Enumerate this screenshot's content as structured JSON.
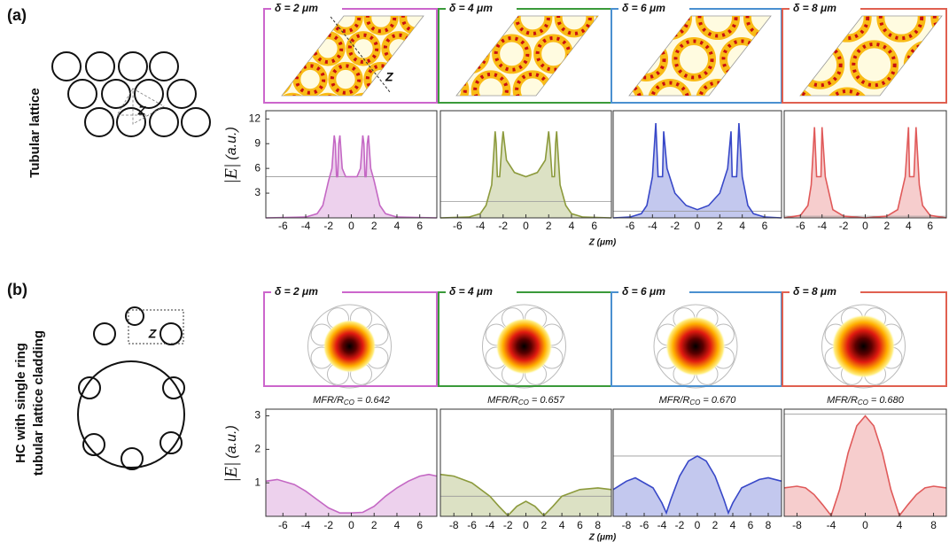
{
  "figure": {
    "panels": [
      {
        "label": "(a)",
        "side_label": [
          "Tubular lattice"
        ],
        "schematic_label": "Z",
        "ylabel_main": "|E|",
        "ylabel_unit": "(a.u.)",
        "xlabel": "Z (μm)",
        "ylim": [
          0,
          13
        ],
        "yticks": [
          3,
          6,
          9,
          12
        ],
        "plots": [
          {
            "title": "δ = 2 μm",
            "image_label": "Z",
            "frame_color": "#cc66cc",
            "color": "#c468c4",
            "xlim": [
              -7.5,
              7.5
            ],
            "xticks": [
              -6,
              -4,
              -2,
              0,
              2,
              4,
              6
            ],
            "x": [
              -7.5,
              -4,
              -3,
              -2.5,
              -2,
              -1.7,
              -1.5,
              -1.4,
              -1.3,
              -1.2,
              -1.1,
              -1.0,
              -0.8,
              -0.5,
              0,
              0.5,
              0.8,
              1.0,
              1.1,
              1.2,
              1.3,
              1.4,
              1.5,
              1.7,
              2,
              2.5,
              3,
              4,
              7.5
            ],
            "values": [
              0,
              0.1,
              0.5,
              1.5,
              4.5,
              6,
              10,
              9,
              5,
              5,
              9,
              10,
              6,
              5,
              5,
              5,
              6,
              10,
              9,
              5,
              5,
              9,
              10,
              6,
              4.5,
              1.5,
              0.5,
              0.1,
              0
            ],
            "level": 5
          },
          {
            "title": "δ = 4 μm",
            "frame_color": "#3a9a3a",
            "color": "#8c9a3c",
            "xlim": [
              -7.5,
              7.5
            ],
            "xticks": [
              -6,
              -4,
              -2,
              0,
              2,
              4,
              6
            ],
            "x": [
              -7.5,
              -5,
              -4,
              -3.5,
              -3,
              -2.7,
              -2.6,
              -2.5,
              -2.3,
              -2.1,
              -2,
              -1.7,
              -1,
              0,
              1,
              1.7,
              2,
              2.1,
              2.3,
              2.5,
              2.6,
              2.7,
              3,
              3.5,
              4,
              5,
              7.5
            ],
            "values": [
              0,
              0.1,
              0.5,
              1.5,
              4,
              10.5,
              9,
              5,
              5,
              9,
              10.5,
              7,
              5.5,
              5,
              5.5,
              7,
              10.5,
              9,
              5,
              5,
              9,
              10.5,
              4,
              1.5,
              0.5,
              0.1,
              0
            ],
            "level": 2
          },
          {
            "title": "δ = 6 μm",
            "frame_color": "#4a90d0",
            "color": "#3848c8",
            "xlim": [
              -7.5,
              7.5
            ],
            "xticks": [
              -6,
              -4,
              -2,
              0,
              2,
              4,
              6
            ],
            "x": [
              -7.5,
              -6,
              -5,
              -4.5,
              -4,
              -3.7,
              -3.5,
              -3.3,
              -3.1,
              -3,
              -2.7,
              -2,
              -1,
              0,
              1,
              2,
              2.7,
              3,
              3.1,
              3.3,
              3.5,
              3.7,
              4,
              4.5,
              5,
              6,
              7.5
            ],
            "values": [
              0,
              0.1,
              0.5,
              1.5,
              5,
              11.5,
              5,
              5,
              5,
              10.5,
              6,
              3,
              1.5,
              1,
              1.5,
              3,
              6,
              10.5,
              5,
              5,
              5,
              11.5,
              5,
              1.5,
              0.5,
              0.1,
              0
            ],
            "level": 0.8
          },
          {
            "title": "δ = 8 μm",
            "frame_color": "#e06050",
            "color": "#e05a5a",
            "xlim": [
              -7.5,
              7.5
            ],
            "xticks": [
              -6,
              -4,
              -2,
              0,
              2,
              4,
              6
            ],
            "x": [
              -7.5,
              -6,
              -5.3,
              -5,
              -4.7,
              -4.5,
              -4.3,
              -4.1,
              -4,
              -3.7,
              -3,
              -2,
              0,
              2,
              3,
              3.7,
              4,
              4.1,
              4.3,
              4.5,
              4.7,
              5,
              5.3,
              6,
              7.5
            ],
            "values": [
              0,
              0.3,
              1.5,
              4,
              11,
              5,
              5,
              5,
              11,
              5,
              1,
              0.2,
              0,
              0.2,
              1,
              5,
              11,
              5,
              5,
              5,
              11,
              4,
              1.5,
              0.3,
              0
            ],
            "level": 0.2
          }
        ]
      },
      {
        "label": "(b)",
        "side_label": [
          "HC with single ring",
          "tubular lattice cladding"
        ],
        "schematic_label": "Z",
        "ylabel_main": "|E|",
        "ylabel_unit": "(a.u.)",
        "xlabel": "Z (μm)",
        "ylim": [
          0,
          3.2
        ],
        "yticks": [
          1,
          2,
          3
        ],
        "plots": [
          {
            "title": "δ = 2 μm",
            "mfr": {
              "text": "MFR/R",
              "sub": "CO",
              "value": "= 0.642"
            },
            "frame_color": "#cc66cc",
            "color": "#c468c4",
            "xlim": [
              -7.5,
              7.5
            ],
            "xticks": [
              -6,
              -4,
              -2,
              0,
              2,
              4,
              6
            ],
            "x": [
              -7.5,
              -6.5,
              -5,
              -4,
              -3,
              -2,
              -1,
              0,
              1,
              2,
              3,
              4,
              5,
              6,
              6.8,
              7.5
            ],
            "values": [
              1.05,
              1.1,
              0.95,
              0.75,
              0.5,
              0.25,
              0.1,
              0.1,
              0.12,
              0.3,
              0.6,
              0.85,
              1.05,
              1.2,
              1.25,
              1.2
            ]
          },
          {
            "title": "δ = 4 μm",
            "mfr": {
              "text": "MFR/R",
              "sub": "CO",
              "value": "= 0.657"
            },
            "frame_color": "#3a9a3a",
            "color": "#8c9a3c",
            "xlim": [
              -9.5,
              9.5
            ],
            "xticks": [
              -8,
              -6,
              -4,
              -2,
              0,
              2,
              4,
              6,
              8
            ],
            "x": [
              -9.5,
              -8,
              -6,
              -4,
              -3,
              -2,
              -1,
              0,
              1,
              2,
              3,
              4,
              6,
              8,
              9.5
            ],
            "values": [
              1.25,
              1.2,
              1.0,
              0.6,
              0.3,
              0.02,
              0.3,
              0.45,
              0.3,
              0.02,
              0.3,
              0.6,
              0.8,
              0.85,
              0.8
            ],
            "level": 0.6
          },
          {
            "title": "δ = 6 μm",
            "mfr": {
              "text": "MFR/R",
              "sub": "CO",
              "value": "= 0.670"
            },
            "frame_color": "#4a90d0",
            "color": "#3848c8",
            "xlim": [
              -9.5,
              9.5
            ],
            "xticks": [
              -8,
              -6,
              -4,
              -2,
              0,
              2,
              4,
              6,
              8
            ],
            "x": [
              -9.5,
              -8,
              -7,
              -5,
              -4,
              -3.5,
              -3,
              -2,
              -1,
              0,
              1,
              2,
              3,
              3.5,
              4,
              5,
              7,
              8,
              9.5
            ],
            "values": [
              0.8,
              1.05,
              1.15,
              0.85,
              0.4,
              0.1,
              0.5,
              1.2,
              1.65,
              1.8,
              1.65,
              1.2,
              0.5,
              0.1,
              0.4,
              0.85,
              1.1,
              1.15,
              1.05
            ],
            "level": 1.8
          },
          {
            "title": "δ = 8 μm",
            "mfr": {
              "text": "MFR/R",
              "sub": "CO",
              "value": "= 0.680"
            },
            "frame_color": "#e06050",
            "color": "#e05a5a",
            "xlim": [
              -9.5,
              9.5
            ],
            "xticks": [
              -8,
              -4,
              0,
              4,
              8
            ],
            "x": [
              -9.5,
              -8,
              -7,
              -6,
              -5,
              -4,
              -3,
              -2,
              -1,
              0,
              1,
              2,
              3,
              4,
              5,
              6,
              7,
              8,
              9.5
            ],
            "values": [
              0.85,
              0.9,
              0.85,
              0.65,
              0.35,
              0.02,
              0.8,
              1.9,
              2.7,
              3.0,
              2.7,
              1.9,
              0.8,
              0.02,
              0.35,
              0.65,
              0.85,
              0.9,
              0.85
            ],
            "level": 3.05
          }
        ]
      }
    ]
  }
}
